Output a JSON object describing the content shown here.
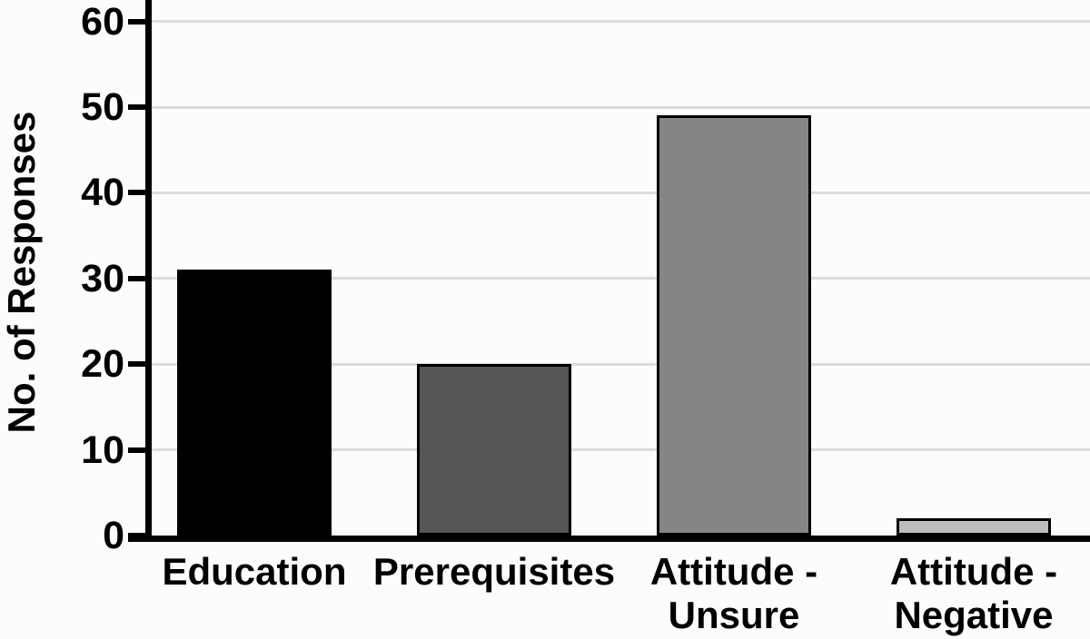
{
  "chart_data": {
    "type": "bar",
    "title": "",
    "xlabel": "",
    "ylabel": "No. of Responses",
    "categories": [
      {
        "label": "Education"
      },
      {
        "label": "Prerequisites"
      },
      {
        "label": "Attitude -\nUnsure"
      },
      {
        "label": "Attitude -\nNegative"
      }
    ],
    "values": [
      31,
      20,
      49,
      2
    ],
    "bar_colors": [
      "#000000",
      "#565656",
      "#858585",
      "#bdbdbd"
    ],
    "bar_border_color": "#000000",
    "yticks": [
      0,
      10,
      20,
      30,
      40,
      50,
      60
    ],
    "ylim": [
      0,
      62.5
    ],
    "grid": true,
    "gridline_color": "#dcdcdc",
    "legend_position": "none"
  }
}
